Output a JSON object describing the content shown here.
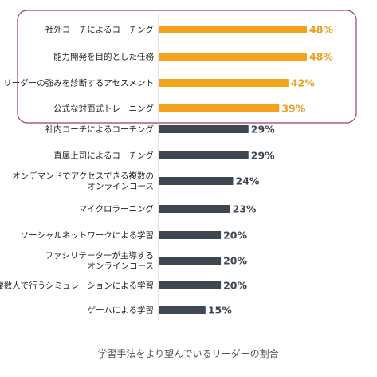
{
  "chart_data": {
    "type": "bar",
    "orientation": "horizontal",
    "caption": "学習手法をより望んでいるリーダーの割合",
    "categories": [
      [
        "社外コーチによるコーチング"
      ],
      [
        "能力開発を目的とした任務"
      ],
      [
        "リーダーの強みを診断するアセスメント"
      ],
      [
        "公式な対面式トレーニング"
      ],
      [
        "社内コーチによるコーチング"
      ],
      [
        "直属上司によるコーチング"
      ],
      [
        "オンデマンドでアクセスできる複数の",
        "オンラインコース"
      ],
      [
        "マイクロラーニング"
      ],
      [
        "ソーシャルネットワークによる学習"
      ],
      [
        "ファシリテーターが主導する",
        "オンラインコース"
      ],
      [
        "複数人で行うシミュレーションによる学習"
      ],
      [
        "ゲームによる学習"
      ]
    ],
    "values": [
      48,
      48,
      42,
      39,
      29,
      29,
      24,
      23,
      20,
      20,
      20,
      15
    ],
    "value_labels": [
      "48%",
      "48%",
      "42%",
      "39%",
      "29%",
      "29%",
      "24%",
      "23%",
      "20%",
      "20%",
      "20%",
      "15%"
    ],
    "highlighted_count": 4,
    "xlim": [
      0,
      48
    ],
    "grid": false,
    "colors": {
      "highlight_bar": "#F3A21B",
      "highlight_text": "#E8A020",
      "default_bar": "#3F4752",
      "default_text": "#3F4752",
      "box_border": "#9E3D6B"
    }
  }
}
